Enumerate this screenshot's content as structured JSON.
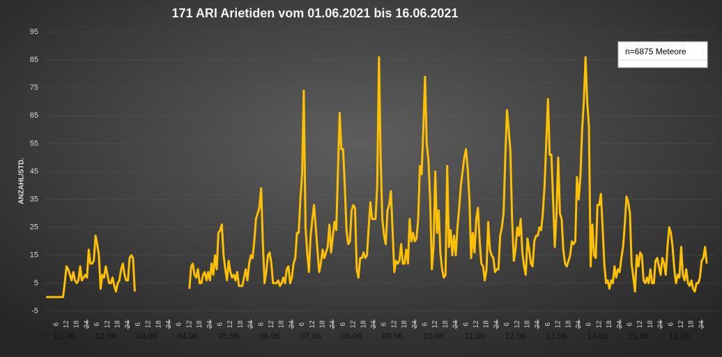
{
  "chart_data": {
    "type": "line",
    "title": "171 ARI Arietiden vom 01.06.2021 bis 16.06.2021",
    "y_label": "ANZAHL/STD.",
    "annotation": "n=6875 Meteore",
    "x_day_labels": [
      "01.06",
      "02.06",
      "03.06",
      "04.06",
      "05.06",
      "06.06",
      "07.06",
      "08.06",
      "09.06",
      "10.06",
      "11.06",
      "12.06",
      "13.06",
      "14.06",
      "15.06",
      "16.06"
    ],
    "x_hour_labels": [
      "6",
      "12",
      "18",
      "24"
    ],
    "color": "#ffc000",
    "ylim": [
      -5,
      95
    ],
    "yticks": [
      -5,
      5,
      15,
      25,
      35,
      45,
      55,
      65,
      75,
      85,
      95
    ],
    "grid": true,
    "values": [
      0,
      0,
      0,
      0,
      0,
      0,
      0,
      0,
      0,
      0,
      0,
      5,
      11,
      10,
      8,
      6,
      9,
      6,
      5,
      6,
      11,
      6,
      7,
      8,
      7,
      17,
      12,
      12,
      13,
      22,
      19,
      15,
      3,
      8,
      7,
      11,
      8,
      5,
      5,
      7,
      4,
      2,
      5,
      6,
      10,
      12,
      8,
      6,
      6,
      14,
      15,
      14,
      2,
      null,
      null,
      null,
      null,
      null,
      null,
      null,
      null,
      null,
      null,
      null,
      null,
      null,
      null,
      null,
      null,
      null,
      null,
      null,
      null,
      null,
      null,
      null,
      null,
      null,
      null,
      null,
      null,
      null,
      null,
      null,
      3,
      11,
      12,
      8,
      7,
      10,
      5,
      5,
      8,
      9,
      6,
      9,
      6,
      12,
      8,
      15,
      10,
      23,
      24,
      26,
      15,
      10,
      6,
      13,
      9,
      7,
      8,
      6,
      9,
      4,
      4,
      4,
      7,
      10,
      6,
      12,
      15,
      14,
      20,
      28,
      30,
      32,
      39,
      20,
      5,
      9,
      15,
      16,
      12,
      5,
      5,
      5,
      6,
      4,
      5,
      7,
      5,
      10,
      11,
      5,
      7,
      12,
      14,
      23,
      23,
      35,
      44,
      74,
      25,
      16,
      9,
      22,
      28,
      33,
      25,
      17,
      9,
      12,
      17,
      14,
      16,
      18,
      26,
      16,
      22,
      27,
      24,
      45,
      66,
      53,
      53,
      40,
      24,
      19,
      20,
      31,
      33,
      32,
      10,
      7,
      14,
      14,
      16,
      14,
      15,
      25,
      34,
      28,
      28,
      28,
      40,
      86,
      50,
      28,
      22,
      19,
      31,
      33,
      38,
      24,
      9,
      13,
      12,
      13,
      19,
      12,
      12,
      17,
      12,
      28,
      20,
      23,
      20,
      21,
      28,
      47,
      44,
      60,
      79,
      55,
      49,
      35,
      10,
      18,
      45,
      23,
      31,
      16,
      10,
      7,
      8,
      47,
      18,
      24,
      15,
      22,
      15,
      25,
      32,
      40,
      45,
      50,
      53,
      46,
      35,
      14,
      23,
      16,
      28,
      32,
      20,
      12,
      11,
      6,
      10,
      27,
      17,
      15,
      14,
      9,
      10,
      10,
      22,
      25,
      30,
      50,
      67,
      60,
      52,
      28,
      13,
      17,
      25,
      22,
      28,
      16,
      11,
      8,
      21,
      17,
      12,
      11,
      20,
      22,
      22,
      25,
      24,
      30,
      40,
      55,
      71,
      51,
      51,
      35,
      18,
      30,
      50,
      30,
      28,
      17,
      12,
      11,
      13,
      15,
      20,
      19,
      20,
      43,
      35,
      43,
      60,
      70,
      86,
      70,
      61,
      11,
      26,
      15,
      14,
      33,
      33,
      37,
      25,
      12,
      5,
      6,
      3,
      6,
      5,
      11,
      7,
      10,
      9,
      14,
      18,
      26,
      36,
      34,
      30,
      12,
      7,
      2,
      15,
      11,
      16,
      15,
      6,
      5,
      7,
      5,
      10,
      5,
      5,
      13,
      14,
      11,
      8,
      14,
      12,
      8,
      18,
      25,
      23,
      18,
      10,
      5,
      8,
      7,
      18,
      8,
      6,
      10,
      5,
      4,
      6,
      3,
      2,
      5,
      5,
      7,
      13,
      14,
      18,
      12
    ]
  }
}
